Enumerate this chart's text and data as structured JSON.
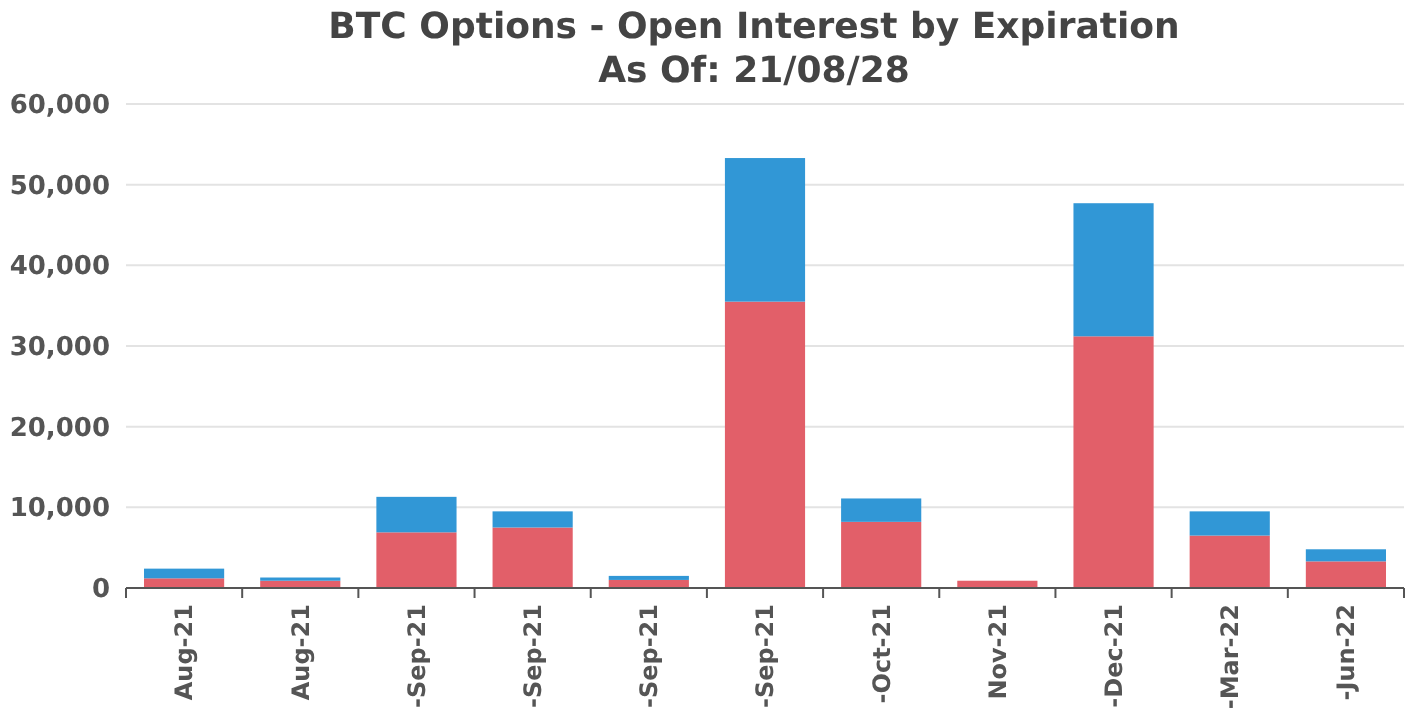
{
  "chart_data": {
    "type": "bar",
    "title": "BTC Options - Open Interest by Expiration",
    "subtitle": "As Of: 21/08/28",
    "categories": [
      "Aug-21",
      "Aug-21",
      "-Sep-21",
      "-Sep-21",
      "-Sep-21",
      "-Sep-21",
      "-Oct-21",
      "Nov-21",
      "-Dec-21",
      "-Mar-22",
      "-Jun-22"
    ],
    "stacked": true,
    "series": [
      {
        "color": "#e25f69",
        "values": [
          1200,
          900,
          6900,
          7500,
          1000,
          35500,
          8200,
          900,
          31200,
          6500,
          3300
        ]
      },
      {
        "color": "#3197d6",
        "values": [
          1200,
          400,
          4400,
          2000,
          500,
          17800,
          2900,
          0,
          16500,
          3000,
          1500
        ]
      }
    ],
    "ylim": [
      0,
      60000
    ],
    "yticks": [
      {
        "value": 0,
        "label": "0"
      },
      {
        "value": 10000,
        "label": "10,000"
      },
      {
        "value": 20000,
        "label": "20,000"
      },
      {
        "value": 30000,
        "label": "30,000"
      },
      {
        "value": 40000,
        "label": "40,000"
      },
      {
        "value": 50000,
        "label": "50,000"
      },
      {
        "value": 60000,
        "label": "60,000"
      }
    ],
    "grid": "y"
  }
}
